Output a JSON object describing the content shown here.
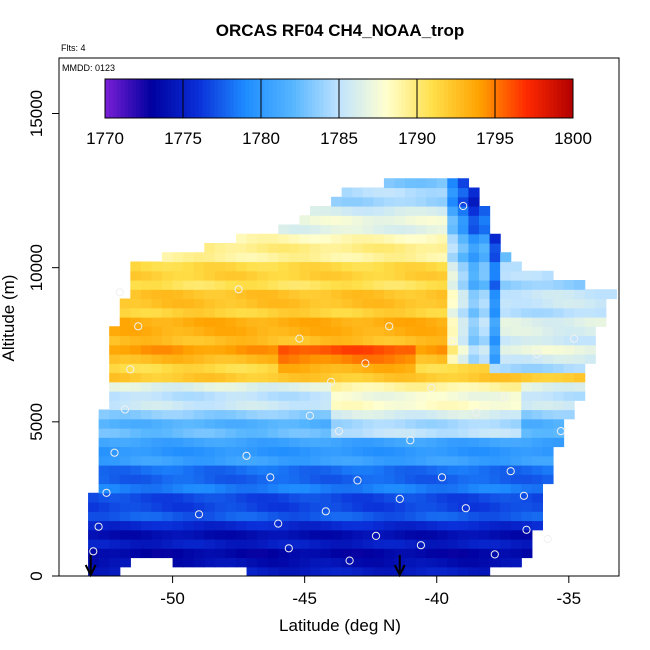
{
  "chart_data": {
    "type": "heatmap",
    "title": "ORCAS RF04 CH4_NOAA_trop",
    "annotations": {
      "flights": "Flts: 4",
      "date": "MMDD: 0123"
    },
    "xlabel": "Latitude (deg N)",
    "ylabel": "Altitude (m)",
    "xlim": [
      -54.3,
      -33.1
    ],
    "ylim": [
      0,
      16800
    ],
    "x_ticks": [
      -50,
      -45,
      -40,
      -35
    ],
    "y_ticks": [
      0,
      5000,
      10000,
      15000
    ],
    "colorbar": {
      "min": 1770,
      "max": 1800,
      "ticks": [
        1770,
        1775,
        1780,
        1785,
        1790,
        1795,
        1800
      ],
      "colors": [
        "#7a1fd6",
        "#00009f",
        "#0a2fd8",
        "#1e8cff",
        "#55b5ff",
        "#bfe3ff",
        "#ffffd0",
        "#ffe04a",
        "#ffa200",
        "#ff2a00",
        "#b10000"
      ]
    },
    "grid": false,
    "envelope_lat": [
      -53.2,
      -52.2,
      -51.4,
      -50.5,
      -49.5,
      -48.5,
      -47.5,
      -46.5,
      -45.5,
      -44.5,
      -43.5,
      -42.5,
      -41.5,
      -40.5,
      -39.5,
      -38.8,
      -38.0,
      -37.5,
      -36.5,
      -35.5,
      -34.5,
      -33.5
    ],
    "envelope_top": [
      1500,
      8000,
      10300,
      10300,
      10500,
      10800,
      11000,
      11100,
      11400,
      12000,
      12500,
      12700,
      12800,
      12800,
      12900,
      12900,
      11500,
      10500,
      9900,
      9700,
      9500,
      9200
    ],
    "envelope_bottom": [
      0,
      0,
      500,
      500,
      400,
      300,
      200,
      0,
      0,
      0,
      0,
      0,
      0,
      0,
      0,
      0,
      200,
      300,
      600,
      4000,
      6000,
      9000
    ],
    "circles_lat": [
      -53.0,
      -52.8,
      -52.5,
      -52.2,
      -51.8,
      -51.6,
      -51.3,
      -52.0,
      -47.5,
      -46.3,
      -46.0,
      -45.6,
      -45.2,
      -44.8,
      -44.2,
      -43.7,
      -43.3,
      -43.0,
      -42.7,
      -42.3,
      -41.8,
      -41.4,
      -41.0,
      -40.6,
      -40.2,
      -39.8,
      -39.4,
      -38.9,
      -38.5,
      -37.8,
      -37.2,
      -36.7,
      -36.2,
      -35.8,
      -35.3,
      -34.8,
      -49.0,
      -47.2,
      -44.0,
      -39.0,
      -37.5,
      -36.6
    ],
    "circles_alt": [
      800,
      1600,
      2700,
      4000,
      5400,
      6700,
      8100,
      9200,
      9300,
      3200,
      1700,
      900,
      7700,
      5200,
      2100,
      4700,
      500,
      3100,
      6900,
      1300,
      8100,
      2500,
      4400,
      1000,
      6100,
      3200,
      7600,
      2200,
      5300,
      700,
      3400,
      2600,
      7200,
      1200,
      4700,
      7700,
      2000,
      3900,
      6300,
      12000,
      5800,
      1500
    ],
    "arrows_lat": [
      -53.1,
      -41.4
    ]
  }
}
